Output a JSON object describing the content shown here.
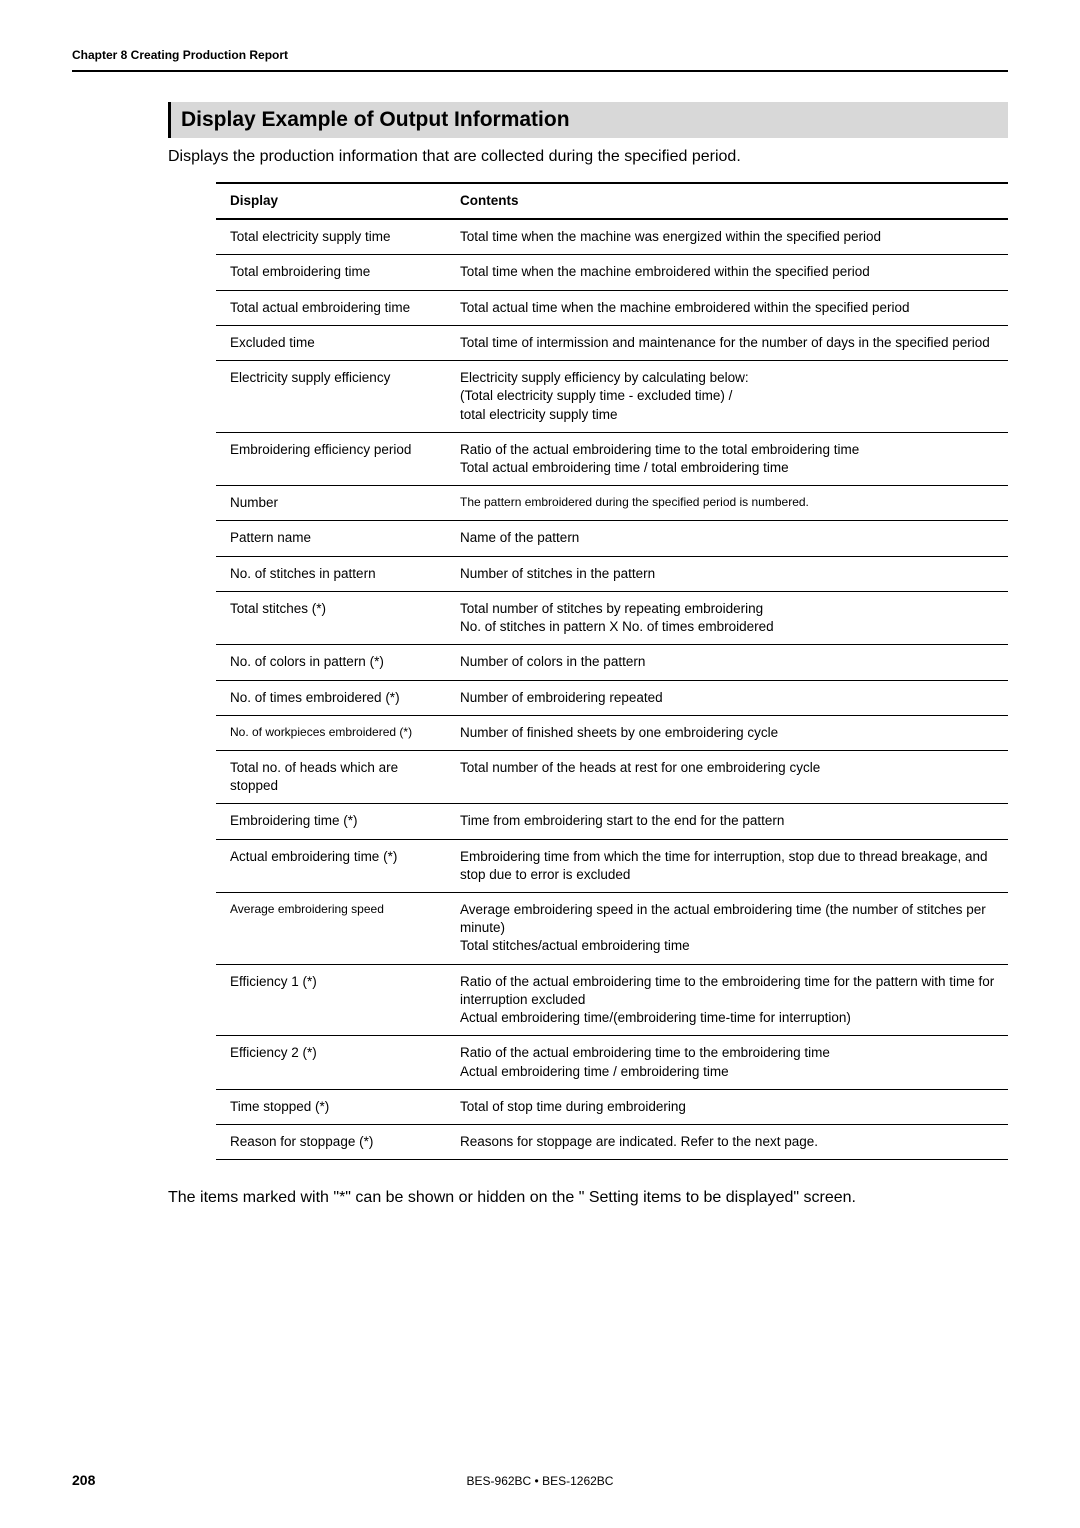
{
  "chapter_header": "Chapter 8  Creating Production Report",
  "section_title": "Display Example of Output Information",
  "intro_text": "Displays the production information that are collected during the specified period.",
  "table": {
    "headers": {
      "display": "Display",
      "contents": "Contents"
    },
    "rows": [
      {
        "display": "Total electricity supply time",
        "contents": "Total time when the machine was energized within the specified period"
      },
      {
        "display": "Total embroidering time",
        "contents": "Total time when the machine embroidered within the specified period"
      },
      {
        "display": "Total actual embroidering time",
        "contents": "Total actual time when the machine embroidered within the specified period"
      },
      {
        "display": "Excluded time",
        "contents": "Total time of intermission and maintenance for the number of days in the specified period"
      },
      {
        "display": "Electricity supply efficiency",
        "contents": "Electricity supply efficiency by calculating below:\n(Total electricity supply time - excluded time) /\ntotal electricity supply time"
      },
      {
        "display": "Embroidering efficiency period",
        "contents": "Ratio of the actual embroidering time to the total embroidering time\nTotal actual embroidering time / total embroidering time"
      },
      {
        "display": "Number",
        "contents": "The pattern embroidered during the specified period is numbered.",
        "contents_small": true
      },
      {
        "display": "Pattern name",
        "contents": "Name of the pattern"
      },
      {
        "display": "No. of stitches in pattern",
        "contents": "Number of stitches in the pattern"
      },
      {
        "display": "Total stitches (*)",
        "contents": "Total number of stitches by repeating embroidering\nNo. of stitches in pattern X No. of times embroidered"
      },
      {
        "display": "No. of colors in pattern (*)",
        "contents": "Number of colors in the pattern"
      },
      {
        "display": "No. of times embroidered (*)",
        "contents": "Number of embroidering repeated"
      },
      {
        "display": "No. of workpieces embroidered (*)",
        "display_small": true,
        "contents": "Number of finished sheets by one embroidering cycle"
      },
      {
        "display": "Total no. of heads which are stopped",
        "contents": "Total number of the heads at rest for one embroidering cycle"
      },
      {
        "display": "Embroidering time (*)",
        "contents": "Time from embroidering start to the end for the pattern"
      },
      {
        "display": "Actual embroidering time (*)",
        "contents": "Embroidering time from which the time for interruption, stop due to thread breakage, and stop due to error is excluded"
      },
      {
        "display": "Average embroidering speed",
        "display_small": true,
        "contents": "Average embroidering speed in the actual embroidering time (the number of stitches per minute)\nTotal stitches/actual embroidering time"
      },
      {
        "display": "Efficiency 1 (*)",
        "contents": "Ratio of the actual embroidering time to the embroidering time for the pattern with time for interruption excluded\nActual embroidering time/(embroidering time-time for interruption)"
      },
      {
        "display": "Efficiency 2 (*)",
        "contents": "Ratio of the actual embroidering time to the embroidering time\nActual embroidering time / embroidering time"
      },
      {
        "display": "Time stopped (*)",
        "contents": "Total of stop time during embroidering"
      },
      {
        "display": "Reason for stoppage (*)",
        "contents": "Reasons for stoppage are indicated.  Refer to the next page."
      }
    ]
  },
  "footnote": "The items marked with \"*\" can be shown or hidden on the \" Setting items to be displayed\" screen.",
  "page_number": "208",
  "footer_center": "BES-962BC • BES-1262BC"
}
